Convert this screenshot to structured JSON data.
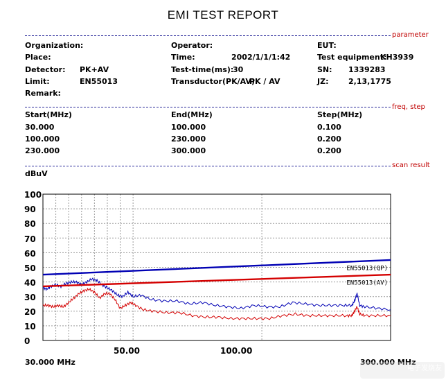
{
  "report": {
    "title": "EMI TEST REPORT",
    "sections": {
      "parameter": "parameter",
      "freq_step": "freq, step",
      "scan_result": "scan result"
    },
    "params": {
      "organization_label": "Organization:",
      "place_label": "Place:",
      "detector_label": "Detector:",
      "detector_value": "PK+AV",
      "limit_label": "Limit:",
      "limit_value": "EN55013",
      "remark_label": "Remark:",
      "operator_label": "Operator:",
      "time_label": "Time:",
      "time_value": "2002/1/1/1:42",
      "test_time_label": "Test-time(ms):",
      "test_time_value": "30",
      "transductor_label": "Transductor(PK/AV):",
      "transductor_value": "PK  /  AV",
      "eut_label": "EUT:",
      "test_equipment_label": "Test equipment:",
      "test_equipment_value": "KH3939",
      "sn_label": "SN:",
      "sn_value": "1339283",
      "jz_label": "JZ:",
      "jz_value": "2,13,1775"
    },
    "freq_table": {
      "headers": [
        "Start(MHz)",
        "End(MHz)",
        "Step(MHz)"
      ],
      "rows": [
        [
          "30.000",
          "100.000",
          "0.100"
        ],
        [
          "100.000",
          "230.000",
          "0.200"
        ],
        [
          "230.000",
          "300.000",
          "0.200"
        ]
      ]
    }
  },
  "chart_data": {
    "type": "line",
    "ylabel": "dBuV",
    "ylim": [
      0,
      100
    ],
    "yticks": [
      "100",
      "90",
      "80",
      "70",
      "60",
      "50",
      "40",
      "30",
      "20",
      "10",
      "0"
    ],
    "xlim": [
      30,
      300
    ],
    "x_axis_start_label": "30.000 MHz",
    "x_axis_end_label": "300.000 MHz",
    "x_ticks": [
      {
        "value": 50,
        "label": "50.00"
      },
      {
        "value": 100,
        "label": "100.00"
      }
    ],
    "grid": true,
    "colors": {
      "qp_limit": "#0000b4",
      "av_limit": "#d40000",
      "qp_trace": "#0000b4",
      "av_trace": "#d40000",
      "grid": "#9a9a9a"
    },
    "series": [
      {
        "name": "EN55013(QP)",
        "role": "limit",
        "points": [
          [
            30,
            45
          ],
          [
            300,
            55
          ]
        ]
      },
      {
        "name": "EN55013(AV)",
        "role": "limit",
        "points": [
          [
            30,
            37
          ],
          [
            300,
            45
          ]
        ]
      },
      {
        "role": "measurement",
        "points": [
          [
            30,
            36
          ],
          [
            33,
            35
          ],
          [
            36,
            37
          ],
          [
            40,
            38
          ],
          [
            44,
            37
          ],
          [
            48,
            39
          ],
          [
            52,
            40
          ],
          [
            56,
            40
          ],
          [
            60,
            38
          ],
          [
            64,
            40
          ],
          [
            68,
            42
          ],
          [
            72,
            41
          ],
          [
            76,
            38
          ],
          [
            80,
            36
          ],
          [
            84,
            34
          ],
          [
            88,
            31
          ],
          [
            92,
            30
          ],
          [
            96,
            33
          ],
          [
            100,
            30
          ],
          [
            106,
            31
          ],
          [
            114,
            28
          ],
          [
            124,
            27
          ],
          [
            134,
            27
          ],
          [
            144,
            25
          ],
          [
            154,
            26
          ],
          [
            164,
            24
          ],
          [
            174,
            23
          ],
          [
            184,
            22
          ],
          [
            194,
            24
          ],
          [
            204,
            23
          ],
          [
            214,
            23
          ],
          [
            224,
            26
          ],
          [
            234,
            25
          ],
          [
            244,
            24
          ],
          [
            254,
            24
          ],
          [
            264,
            24
          ],
          [
            270,
            24
          ],
          [
            272,
            27
          ],
          [
            274,
            32
          ],
          [
            276,
            24
          ],
          [
            280,
            23
          ],
          [
            290,
            22
          ],
          [
            300,
            21
          ]
        ]
      },
      {
        "role": "measurement",
        "points": [
          [
            30,
            24
          ],
          [
            34,
            24
          ],
          [
            38,
            23
          ],
          [
            42,
            24
          ],
          [
            46,
            23
          ],
          [
            50,
            26
          ],
          [
            54,
            29
          ],
          [
            58,
            32
          ],
          [
            62,
            34
          ],
          [
            66,
            35
          ],
          [
            70,
            33
          ],
          [
            74,
            29
          ],
          [
            78,
            32
          ],
          [
            82,
            32
          ],
          [
            86,
            28
          ],
          [
            90,
            22
          ],
          [
            94,
            24
          ],
          [
            98,
            26
          ],
          [
            102,
            24
          ],
          [
            108,
            21
          ],
          [
            116,
            20
          ],
          [
            126,
            19
          ],
          [
            136,
            19
          ],
          [
            146,
            17
          ],
          [
            156,
            16
          ],
          [
            166,
            16
          ],
          [
            176,
            15
          ],
          [
            186,
            15
          ],
          [
            196,
            15
          ],
          [
            206,
            15
          ],
          [
            216,
            17
          ],
          [
            226,
            18
          ],
          [
            236,
            17
          ],
          [
            246,
            17
          ],
          [
            256,
            17
          ],
          [
            266,
            17
          ],
          [
            270,
            17
          ],
          [
            272,
            20
          ],
          [
            274,
            23
          ],
          [
            276,
            18
          ],
          [
            280,
            17
          ],
          [
            290,
            17
          ],
          [
            300,
            17
          ]
        ]
      }
    ]
  },
  "watermark": "电子发烧友"
}
